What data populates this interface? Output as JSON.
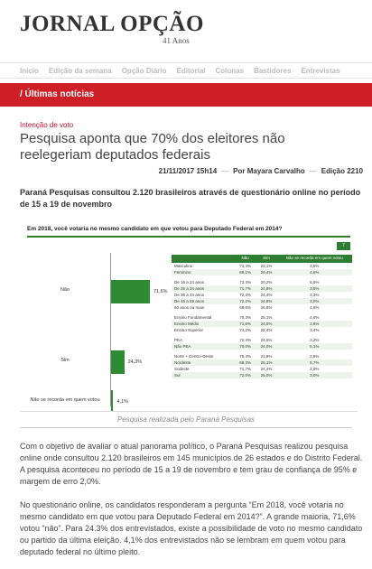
{
  "header": {
    "logo": "JORNAL OPÇÃO",
    "logo_sub": "41 Anos"
  },
  "nav": {
    "items": [
      "Início",
      "Edição da semana",
      "Opção Diário",
      "Editorial",
      "Colunas",
      "Bastidores",
      "Entrevistas"
    ]
  },
  "section": {
    "title": "/ Últimas notícias"
  },
  "article": {
    "kicker": "Intenção de voto",
    "headline": "Pesquisa aponta que 70% dos eleitores não reelegeriam deputados federais",
    "date": "21/11/2017 15h14",
    "author": "Por Mayara Carvalho",
    "edition": "Edição 2210",
    "lead": "Paraná Pesquisas consultou 2.120 brasileiros através de questionário online no período de 15 a 19 de novembro",
    "caption": "Pesquisa realizada pelo Paraná Pesquisas",
    "paragraphs": [
      "Com o objetivo de avaliar o atual panorama político, o Paraná Pesquisas realizou pesquisa online onde consultou 2.120 brasileiros em 145 municípios  de 26 estados e do Distrito Federal. A pesquisa aconteceu no período de 15 a 19 de novembro e tem grau de confiança  de 95% e margem de erro 2,0%.",
      "No questionário online, os candidatos responderam a pergunta  “Em 2018, você votaria no mesmo candidato em que votou para Deputado Federal em 2014?”. A grande maioria, 71,6% votou “não”. Para 24.3% dos entrevistados, existe a possibilidade de voto no mesmo candidato ou partido da última eleição. 4,1% dos entrevistados não se lembram em quem votou para deputado federal no último pleito."
    ]
  },
  "figure": {
    "title": "Em 2018, você votaria no mesmo candidato em que votou para Deputado Federal em 2014?",
    "top_button": "7",
    "table_headers": [
      "",
      "Não",
      "Sim",
      "Não se recorda em quem votou"
    ],
    "table_rows": [
      {
        "label": "Masculino",
        "nao": "74,4%",
        "sim": "22,1%",
        "nr": "3,5%"
      },
      {
        "label": "Feminino",
        "nao": "69,1%",
        "sim": "26,4%",
        "nr": "4,6%"
      },
      {
        "gap": true
      },
      {
        "label": "De 16 a 24 anos",
        "nao": "73,3%",
        "sim": "20,2%",
        "nr": "6,5%"
      },
      {
        "label": "De 25 a 34 anos",
        "nao": "71,7%",
        "sim": "24,8%",
        "nr": "3,5%"
      },
      {
        "label": "De 35 a 44 anos",
        "nao": "72,3%",
        "sim": "24,4%",
        "nr": "3,3%"
      },
      {
        "label": "De 45 a 59 anos",
        "nao": "72,2%",
        "sim": "24,8%",
        "nr": "3,0%"
      },
      {
        "label": "60 anos ou mais",
        "nao": "68,6%",
        "sim": "26,8%",
        "nr": "4,6%"
      },
      {
        "gap": true
      },
      {
        "label": "Ensino Fundamental",
        "nao": "70,3%",
        "sim": "25,1%",
        "nr": "4,6%"
      },
      {
        "label": "Ensino Médio",
        "nao": "71,6%",
        "sim": "24,5%",
        "nr": "3,8%"
      },
      {
        "label": "Ensino Superior",
        "nao": "74,2%",
        "sim": "22,4%",
        "nr": "3,4%"
      },
      {
        "gap": true
      },
      {
        "label": "PEA",
        "nao": "72,4%",
        "sim": "24,5%",
        "nr": "3,2%"
      },
      {
        "label": "Não PEA",
        "nao": "70,0%",
        "sim": "24,0%",
        "nr": "6,1%"
      },
      {
        "gap": true
      },
      {
        "label": "Norte + Centro-Oeste",
        "nao": "75,4%",
        "sim": "21,9%",
        "nr": "2,8%"
      },
      {
        "label": "Nordeste",
        "nao": "69,3%",
        "sim": "25,1%",
        "nr": "5,7%"
      },
      {
        "label": "Sudeste",
        "nao": "71,7%",
        "sim": "24,4%",
        "nr": "3,9%"
      },
      {
        "label": "Sul",
        "nao": "72,0%",
        "sim": "25,0%",
        "nr": "3,0%"
      }
    ]
  },
  "chart_data": {
    "type": "bar",
    "orientation": "horizontal",
    "title": "Em 2018, você votaria no mesmo candidato em que votou para Deputado Federal em 2014?",
    "categories": [
      "Não",
      "Sim",
      "Não se recorda em quem votou"
    ],
    "values": [
      71.6,
      24.3,
      4.1
    ],
    "value_labels": [
      "71,6%",
      "24,3%",
      "4,1%"
    ],
    "color": "#2e8b34"
  },
  "colors": {
    "brand_red": "#cf1f26",
    "chart_green": "#2e8b34",
    "table_header_green": "#2e7d32"
  }
}
